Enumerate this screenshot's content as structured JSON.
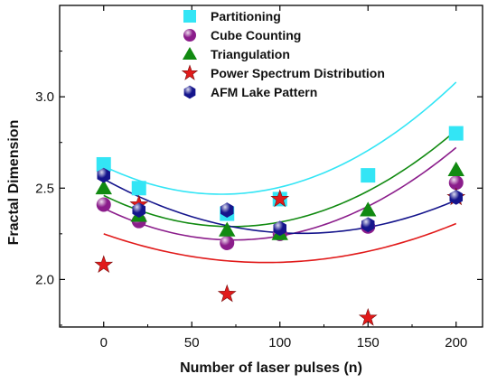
{
  "chart_data": {
    "type": "scatter",
    "title": "",
    "xlabel": "Number of laser pulses (n)",
    "ylabel": "Fractal Dimension",
    "xlim": [
      -25,
      215
    ],
    "ylim": [
      1.74,
      3.5
    ],
    "xticks": [
      0,
      50,
      100,
      150,
      200
    ],
    "xtick_labels": [
      "0",
      "50",
      "100",
      "150",
      "200"
    ],
    "yticks": [
      2.0,
      2.5,
      3.0
    ],
    "ytick_labels": [
      "2.0",
      "2.5",
      "3.0"
    ],
    "grid": false,
    "legend_position": "top-center",
    "series": [
      {
        "name": "Partitioning",
        "marker": "square",
        "color": "#33e5f5",
        "x": [
          0,
          20,
          70,
          100,
          150,
          200
        ],
        "y": [
          2.63,
          2.5,
          2.36,
          2.44,
          2.57,
          2.8
        ],
        "fit": [
          2.62,
          -0.0046,
          3.45e-05
        ]
      },
      {
        "name": "Cube Counting",
        "marker": "sphere",
        "color": "#8b1d8b",
        "x": [
          0,
          20,
          70,
          100,
          150,
          200
        ],
        "y": [
          2.41,
          2.32,
          2.2,
          2.25,
          2.29,
          2.53
        ],
        "fit": [
          2.39,
          -0.0047,
          3.18e-05
        ]
      },
      {
        "name": "Triangulation",
        "marker": "triangle",
        "color": "#118a11",
        "x": [
          0,
          20,
          70,
          100,
          150,
          200
        ],
        "y": [
          2.5,
          2.35,
          2.27,
          2.25,
          2.38,
          2.6
        ],
        "fit": [
          2.46,
          -0.0047,
          3.24e-05
        ]
      },
      {
        "name": "Power Spectrum Distribution",
        "marker": "star",
        "color": "#e11a1a",
        "x": [
          0,
          20,
          70,
          100,
          150,
          200
        ],
        "y": [
          2.08,
          2.41,
          1.92,
          2.44,
          1.79,
          2.45
        ],
        "fit": [
          2.25,
          -0.0034,
          1.84e-05
        ]
      },
      {
        "name": "AFM Lake Pattern",
        "marker": "hexagon",
        "color": "#15158c",
        "x": [
          0,
          20,
          70,
          100,
          150,
          200
        ],
        "y": [
          2.57,
          2.38,
          2.38,
          2.28,
          2.3,
          2.45
        ],
        "fit": [
          2.55,
          -0.0053,
          2.36e-05
        ]
      }
    ]
  }
}
